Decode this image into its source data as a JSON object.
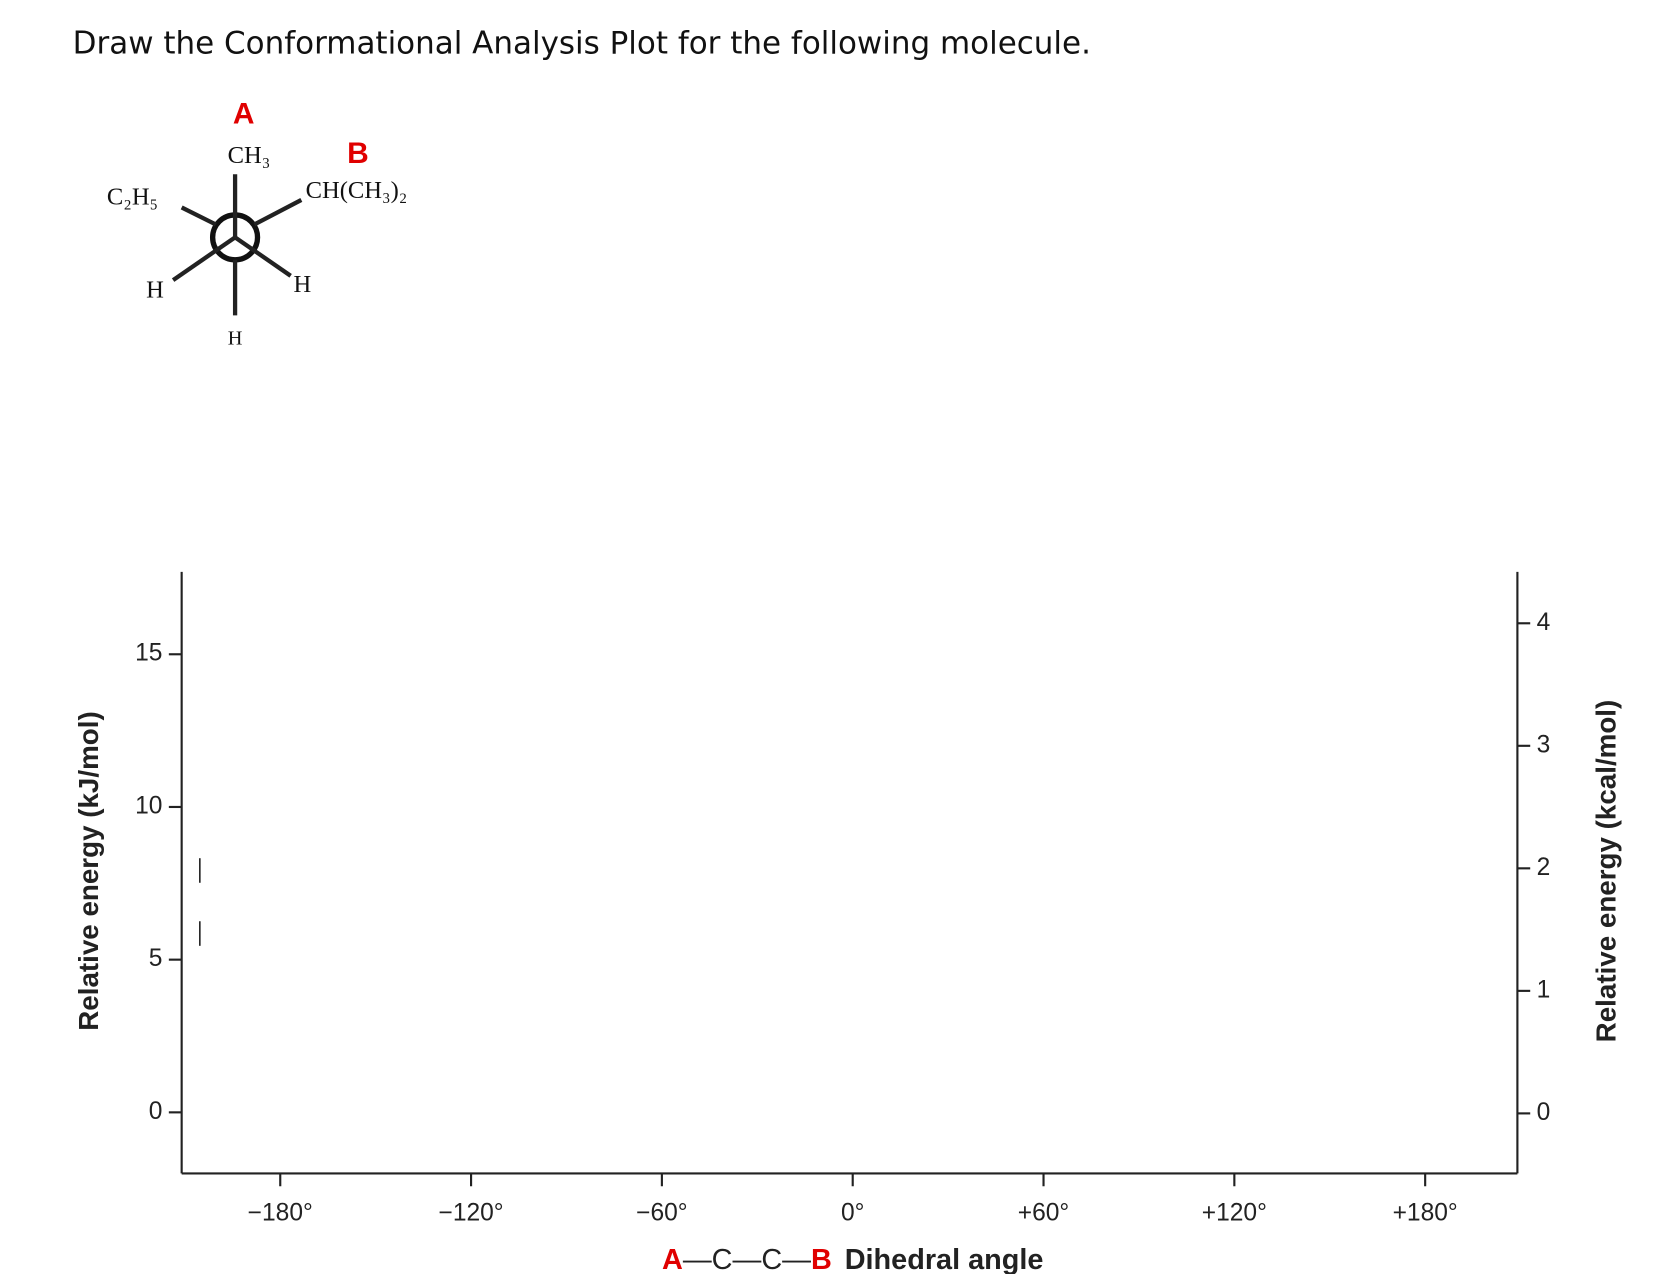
{
  "question": "Draw the Conformational Analysis Plot for the following molecule.",
  "newman": {
    "label_a": "A",
    "label_b": "B",
    "front_top": "CH₃",
    "front_left": "H",
    "front_right": "H",
    "back_left": "C₂H₅",
    "back_right": "CH(CH₃)₂",
    "back_bottom": "H"
  },
  "chart_data": {
    "type": "line",
    "xlabel": [
      "A",
      "—C—C—",
      "B",
      "Dihedral angle"
    ],
    "ylabel": "Relative energy (kJ/mol)",
    "y2label": "Relative energy (kcal/mol)",
    "xlim": [
      -211,
      209
    ],
    "xticks": [
      {
        "value": -180,
        "label": "−180°"
      },
      {
        "value": -120,
        "label": "−120°"
      },
      {
        "value": -60,
        "label": "−60°"
      },
      {
        "value": 0,
        "label": "0°"
      },
      {
        "value": 60,
        "label": "+60°"
      },
      {
        "value": 120,
        "label": "+120°"
      },
      {
        "value": 180,
        "label": "+180°"
      }
    ],
    "ylim": [
      -2,
      17.7
    ],
    "yticks": [
      0,
      5,
      10,
      15
    ],
    "y2lim": [
      -0.49,
      4.42
    ],
    "y2ticks": [
      0,
      1,
      2,
      3,
      4
    ],
    "grid": false
  }
}
